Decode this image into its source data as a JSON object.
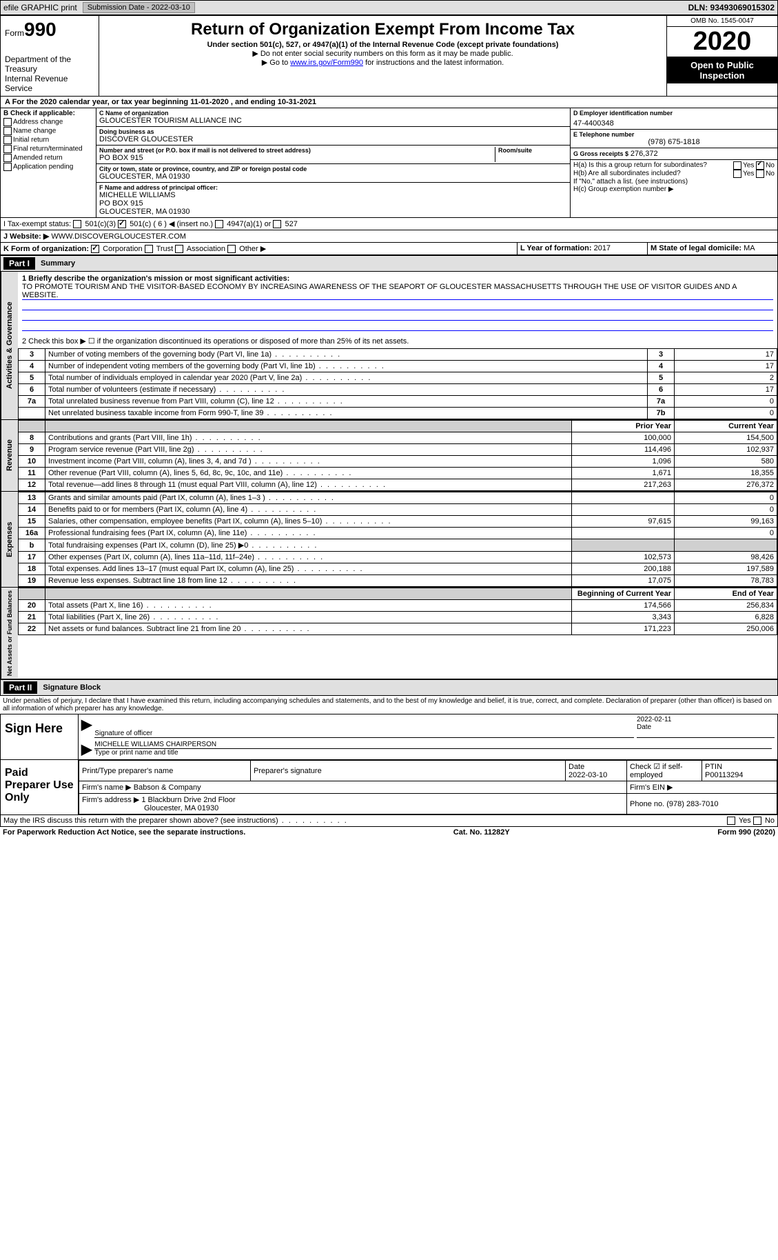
{
  "topbar": {
    "efile": "efile GRAPHIC print",
    "submission_label": "Submission Date - 2022-03-10",
    "dln": "DLN: 93493069015302"
  },
  "header": {
    "form_prefix": "Form",
    "form_number": "990",
    "dept": "Department of the Treasury",
    "irs": "Internal Revenue Service",
    "title": "Return of Organization Exempt From Income Tax",
    "subtitle": "Under section 501(c), 527, or 4947(a)(1) of the Internal Revenue Code (except private foundations)",
    "instr1": "▶ Do not enter social security numbers on this form as it may be made public.",
    "instr2_pre": "▶ Go to ",
    "instr2_link": "www.irs.gov/Form990",
    "instr2_post": " for instructions and the latest information.",
    "omb": "OMB No. 1545-0047",
    "year": "2020",
    "otp": "Open to Public Inspection"
  },
  "period": {
    "text": "For the 2020 calendar year, or tax year beginning 11-01-2020   , and ending 10-31-2021",
    "a_label": "A"
  },
  "sectionB": {
    "label": "B Check if applicable:",
    "items": [
      "Address change",
      "Name change",
      "Initial return",
      "Final return/terminated",
      "Amended return",
      "Application pending"
    ]
  },
  "org": {
    "name_label": "C Name of organization",
    "name": "GLOUCESTER TOURISM ALLIANCE INC",
    "dba_label": "Doing business as",
    "dba": "DISCOVER GLOUCESTER",
    "street_label": "Number and street (or P.O. box if mail is not delivered to street address)",
    "room_label": "Room/suite",
    "street": "PO BOX 915",
    "city_label": "City or town, state or province, country, and ZIP or foreign postal code",
    "city": "GLOUCESTER, MA  01930",
    "officer_label": "F Name and address of principal officer:",
    "officer_name": "MICHELLE WILLIAMS",
    "officer_street": "PO BOX 915",
    "officer_city": "GLOUCESTER, MA  01930"
  },
  "right": {
    "ein_label": "D Employer identification number",
    "ein": "47-4400348",
    "phone_label": "E Telephone number",
    "phone": "(978) 675-1818",
    "gross_label": "G Gross receipts $",
    "gross": "276,372",
    "ha_label": "H(a)  Is this a group return for subordinates?",
    "hb_label": "H(b)  Are all subordinates included?",
    "hb_note": "If \"No,\" attach a list. (see instructions)",
    "hc_label": "H(c)  Group exemption number ▶",
    "yes": "Yes",
    "no": "No"
  },
  "lineI": {
    "label": "I    Tax-exempt status:",
    "opt1": "501(c)(3)",
    "opt2": "501(c) ( 6 ) ◀ (insert no.)",
    "opt3": "4947(a)(1) or",
    "opt4": "527"
  },
  "lineJ": {
    "label": "J   Website: ▶",
    "value": "WWW.DISCOVERGLOUCESTER.COM"
  },
  "lineK": {
    "label": "K Form of organization:",
    "opts": [
      "Corporation",
      "Trust",
      "Association",
      "Other ▶"
    ]
  },
  "lineL": {
    "label": "L Year of formation:",
    "value": "2017"
  },
  "lineM": {
    "label": "M State of legal domicile:",
    "value": "MA"
  },
  "part1": {
    "header": "Part I",
    "title": "Summary",
    "line1_label": "1  Briefly describe the organization's mission or most significant activities:",
    "mission": "TO PROMOTE TOURISM AND THE VISITOR-BASED ECONOMY BY INCREASING AWARENESS OF THE SEAPORT OF GLOUCESTER MASSACHUSETTS THROUGH THE USE OF VISITOR GUIDES AND A WEBSITE.",
    "line2": "2   Check this box ▶ ☐  if the organization discontinued its operations or disposed of more than 25% of its net assets.",
    "governance_label": "Activities & Governance",
    "revenue_label": "Revenue",
    "expenses_label": "Expenses",
    "netassets_label": "Net Assets or Fund Balances",
    "prior_year": "Prior Year",
    "current_year": "Current Year",
    "begin_year": "Beginning of Current Year",
    "end_year": "End of Year",
    "rows_gov": [
      {
        "n": "3",
        "d": "Number of voting members of the governing body (Part VI, line 1a)",
        "box": "3",
        "v": "17"
      },
      {
        "n": "4",
        "d": "Number of independent voting members of the governing body (Part VI, line 1b)",
        "box": "4",
        "v": "17"
      },
      {
        "n": "5",
        "d": "Total number of individuals employed in calendar year 2020 (Part V, line 2a)",
        "box": "5",
        "v": "2"
      },
      {
        "n": "6",
        "d": "Total number of volunteers (estimate if necessary)",
        "box": "6",
        "v": "17"
      },
      {
        "n": "7a",
        "d": "Total unrelated business revenue from Part VIII, column (C), line 12",
        "box": "7a",
        "v": "0"
      },
      {
        "n": "",
        "d": "Net unrelated business taxable income from Form 990-T, line 39",
        "box": "7b",
        "v": "0"
      }
    ],
    "rows_rev": [
      {
        "n": "8",
        "d": "Contributions and grants (Part VIII, line 1h)",
        "py": "100,000",
        "cy": "154,500"
      },
      {
        "n": "9",
        "d": "Program service revenue (Part VIII, line 2g)",
        "py": "114,496",
        "cy": "102,937"
      },
      {
        "n": "10",
        "d": "Investment income (Part VIII, column (A), lines 3, 4, and 7d )",
        "py": "1,096",
        "cy": "580"
      },
      {
        "n": "11",
        "d": "Other revenue (Part VIII, column (A), lines 5, 6d, 8c, 9c, 10c, and 11e)",
        "py": "1,671",
        "cy": "18,355"
      },
      {
        "n": "12",
        "d": "Total revenue—add lines 8 through 11 (must equal Part VIII, column (A), line 12)",
        "py": "217,263",
        "cy": "276,372"
      }
    ],
    "rows_exp": [
      {
        "n": "13",
        "d": "Grants and similar amounts paid (Part IX, column (A), lines 1–3 )",
        "py": "",
        "cy": "0"
      },
      {
        "n": "14",
        "d": "Benefits paid to or for members (Part IX, column (A), line 4)",
        "py": "",
        "cy": "0"
      },
      {
        "n": "15",
        "d": "Salaries, other compensation, employee benefits (Part IX, column (A), lines 5–10)",
        "py": "97,615",
        "cy": "99,163"
      },
      {
        "n": "16a",
        "d": "Professional fundraising fees (Part IX, column (A), line 11e)",
        "py": "",
        "cy": "0"
      },
      {
        "n": "b",
        "d": "Total fundraising expenses (Part IX, column (D), line 25) ▶0",
        "py": "shade",
        "cy": "shade"
      },
      {
        "n": "17",
        "d": "Other expenses (Part IX, column (A), lines 11a–11d, 11f–24e)",
        "py": "102,573",
        "cy": "98,426"
      },
      {
        "n": "18",
        "d": "Total expenses. Add lines 13–17 (must equal Part IX, column (A), line 25)",
        "py": "200,188",
        "cy": "197,589"
      },
      {
        "n": "19",
        "d": "Revenue less expenses. Subtract line 18 from line 12",
        "py": "17,075",
        "cy": "78,783"
      }
    ],
    "rows_net": [
      {
        "n": "20",
        "d": "Total assets (Part X, line 16)",
        "py": "174,566",
        "cy": "256,834"
      },
      {
        "n": "21",
        "d": "Total liabilities (Part X, line 26)",
        "py": "3,343",
        "cy": "6,828"
      },
      {
        "n": "22",
        "d": "Net assets or fund balances. Subtract line 21 from line 20",
        "py": "171,223",
        "cy": "250,006"
      }
    ]
  },
  "part2": {
    "header": "Part II",
    "title": "Signature Block",
    "penalty": "Under penalties of perjury, I declare that I have examined this return, including accompanying schedules and statements, and to the best of my knowledge and belief, it is true, correct, and complete. Declaration of preparer (other than officer) is based on all information of which preparer has any knowledge.",
    "sign_here": "Sign Here",
    "sig_officer": "Signature of officer",
    "sig_date": "Date",
    "sig_date_val": "2022-02-11",
    "officer_name": "MICHELLE WILLIAMS CHAIRPERSON",
    "officer_sub": "Type or print name and title",
    "paid_label": "Paid Preparer Use Only",
    "prep_name_label": "Print/Type preparer's name",
    "prep_sig_label": "Preparer's signature",
    "prep_date_label": "Date",
    "prep_date": "2022-03-10",
    "self_emp": "Check ☑ if self-employed",
    "ptin_label": "PTIN",
    "ptin": "P00113294",
    "firm_name_label": "Firm's name    ▶",
    "firm_name": "Babson & Company",
    "firm_ein_label": "Firm's EIN ▶",
    "firm_addr_label": "Firm's address ▶",
    "firm_addr1": "1 Blackburn Drive 2nd Floor",
    "firm_addr2": "Gloucester, MA  01930",
    "firm_phone_label": "Phone no.",
    "firm_phone": "(978) 283-7010",
    "discuss": "May the IRS discuss this return with the preparer shown above? (see instructions)"
  },
  "footer": {
    "left": "For Paperwork Reduction Act Notice, see the separate instructions.",
    "center": "Cat. No. 11282Y",
    "right": "Form 990 (2020)"
  }
}
